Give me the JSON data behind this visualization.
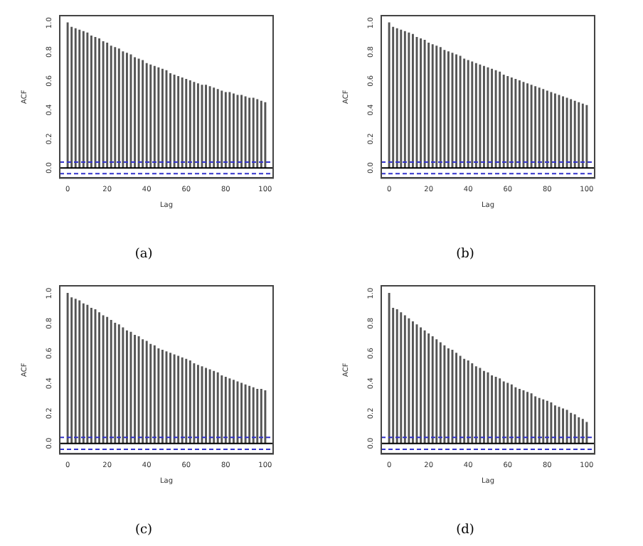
{
  "chart_data": [
    {
      "type": "bar",
      "title": "(a)",
      "xlabel": "Lag",
      "ylabel": "ACF",
      "x": [
        0,
        2,
        4,
        6,
        8,
        10,
        12,
        14,
        16,
        18,
        20,
        22,
        24,
        26,
        28,
        30,
        32,
        34,
        36,
        38,
        40,
        42,
        44,
        46,
        48,
        50,
        52,
        54,
        56,
        58,
        60,
        62,
        64,
        66,
        68,
        70,
        72,
        74,
        76,
        78,
        80,
        82,
        84,
        86,
        88,
        90,
        92,
        94,
        96,
        98,
        100
      ],
      "values": [
        1.0,
        0.97,
        0.96,
        0.95,
        0.94,
        0.93,
        0.91,
        0.9,
        0.89,
        0.87,
        0.86,
        0.84,
        0.83,
        0.82,
        0.8,
        0.79,
        0.78,
        0.76,
        0.75,
        0.74,
        0.72,
        0.71,
        0.7,
        0.69,
        0.68,
        0.67,
        0.65,
        0.64,
        0.63,
        0.62,
        0.61,
        0.6,
        0.59,
        0.58,
        0.57,
        0.57,
        0.56,
        0.55,
        0.54,
        0.53,
        0.52,
        0.52,
        0.51,
        0.5,
        0.5,
        0.49,
        0.48,
        0.48,
        0.47,
        0.46,
        0.45
      ],
      "color": "#555555",
      "xlim": [
        -4,
        104
      ],
      "ylim": [
        -0.07,
        1.05
      ],
      "xticks": [
        0,
        20,
        40,
        60,
        80,
        100
      ],
      "yticks": [
        {
          "value": 0,
          "label": "0.0"
        },
        {
          "value": 0.2,
          "label": "0.2"
        },
        {
          "value": 0.4,
          "label": "0.4"
        },
        {
          "value": 0.6,
          "label": "0.6"
        },
        {
          "value": 0.8,
          "label": "0.8"
        },
        {
          "value": 1,
          "label": "1.0"
        }
      ],
      "ref_lines": [
        {
          "axis": "y",
          "value": 0,
          "color": "#000000",
          "line_style": "solid"
        },
        {
          "axis": "y",
          "value": 0.04,
          "color": "#3333cc",
          "line_style": "dashed"
        },
        {
          "axis": "y",
          "value": -0.04,
          "color": "#3333cc",
          "line_style": "dashed"
        }
      ]
    },
    {
      "type": "bar",
      "title": "(b)",
      "xlabel": "Lag",
      "ylabel": "ACF",
      "x": [
        0,
        2,
        4,
        6,
        8,
        10,
        12,
        14,
        16,
        18,
        20,
        22,
        24,
        26,
        28,
        30,
        32,
        34,
        36,
        38,
        40,
        42,
        44,
        46,
        48,
        50,
        52,
        54,
        56,
        58,
        60,
        62,
        64,
        66,
        68,
        70,
        72,
        74,
        76,
        78,
        80,
        82,
        84,
        86,
        88,
        90,
        92,
        94,
        96,
        98,
        100
      ],
      "values": [
        1.0,
        0.97,
        0.96,
        0.95,
        0.94,
        0.93,
        0.92,
        0.9,
        0.89,
        0.88,
        0.86,
        0.85,
        0.84,
        0.83,
        0.81,
        0.8,
        0.79,
        0.78,
        0.77,
        0.75,
        0.74,
        0.73,
        0.72,
        0.71,
        0.7,
        0.69,
        0.68,
        0.67,
        0.66,
        0.64,
        0.63,
        0.62,
        0.61,
        0.6,
        0.59,
        0.58,
        0.57,
        0.56,
        0.55,
        0.54,
        0.53,
        0.52,
        0.51,
        0.5,
        0.49,
        0.48,
        0.47,
        0.46,
        0.45,
        0.44,
        0.43
      ],
      "color": "#555555",
      "xlim": [
        -4,
        104
      ],
      "ylim": [
        -0.07,
        1.05
      ],
      "xticks": [
        0,
        20,
        40,
        60,
        80,
        100
      ],
      "yticks": [
        {
          "value": 0,
          "label": "0.0"
        },
        {
          "value": 0.2,
          "label": "0.2"
        },
        {
          "value": 0.4,
          "label": "0.4"
        },
        {
          "value": 0.6,
          "label": "0.6"
        },
        {
          "value": 0.8,
          "label": "0.8"
        },
        {
          "value": 1,
          "label": "1.0"
        }
      ],
      "ref_lines": [
        {
          "axis": "y",
          "value": 0,
          "color": "#000000",
          "line_style": "solid"
        },
        {
          "axis": "y",
          "value": 0.04,
          "color": "#3333cc",
          "line_style": "dashed"
        },
        {
          "axis": "y",
          "value": -0.04,
          "color": "#3333cc",
          "line_style": "dashed"
        }
      ]
    },
    {
      "type": "bar",
      "title": "(c)",
      "xlabel": "Lag",
      "ylabel": "ACF",
      "x": [
        0,
        2,
        4,
        6,
        8,
        10,
        12,
        14,
        16,
        18,
        20,
        22,
        24,
        26,
        28,
        30,
        32,
        34,
        36,
        38,
        40,
        42,
        44,
        46,
        48,
        50,
        52,
        54,
        56,
        58,
        60,
        62,
        64,
        66,
        68,
        70,
        72,
        74,
        76,
        78,
        80,
        82,
        84,
        86,
        88,
        90,
        92,
        94,
        96,
        98,
        100
      ],
      "values": [
        1.0,
        0.97,
        0.96,
        0.95,
        0.93,
        0.92,
        0.9,
        0.89,
        0.87,
        0.85,
        0.84,
        0.82,
        0.8,
        0.79,
        0.77,
        0.75,
        0.74,
        0.72,
        0.71,
        0.69,
        0.68,
        0.66,
        0.65,
        0.63,
        0.62,
        0.61,
        0.6,
        0.59,
        0.58,
        0.57,
        0.56,
        0.55,
        0.53,
        0.52,
        0.51,
        0.5,
        0.49,
        0.48,
        0.47,
        0.45,
        0.44,
        0.43,
        0.42,
        0.41,
        0.4,
        0.39,
        0.38,
        0.37,
        0.36,
        0.36,
        0.35
      ],
      "color": "#555555",
      "xlim": [
        -4,
        104
      ],
      "ylim": [
        -0.07,
        1.05
      ],
      "xticks": [
        0,
        20,
        40,
        60,
        80,
        100
      ],
      "yticks": [
        {
          "value": 0,
          "label": "0.0"
        },
        {
          "value": 0.2,
          "label": "0.2"
        },
        {
          "value": 0.4,
          "label": "0.4"
        },
        {
          "value": 0.6,
          "label": "0.6"
        },
        {
          "value": 0.8,
          "label": "0.8"
        },
        {
          "value": 1,
          "label": "1.0"
        }
      ],
      "ref_lines": [
        {
          "axis": "y",
          "value": 0,
          "color": "#000000",
          "line_style": "solid"
        },
        {
          "axis": "y",
          "value": 0.04,
          "color": "#3333cc",
          "line_style": "dashed"
        },
        {
          "axis": "y",
          "value": -0.04,
          "color": "#3333cc",
          "line_style": "dashed"
        }
      ]
    },
    {
      "type": "bar",
      "title": "(d)",
      "xlabel": "Lag",
      "ylabel": "ACF",
      "x": [
        0,
        2,
        4,
        6,
        8,
        10,
        12,
        14,
        16,
        18,
        20,
        22,
        24,
        26,
        28,
        30,
        32,
        34,
        36,
        38,
        40,
        42,
        44,
        46,
        48,
        50,
        52,
        54,
        56,
        58,
        60,
        62,
        64,
        66,
        68,
        70,
        72,
        74,
        76,
        78,
        80,
        82,
        84,
        86,
        88,
        90,
        92,
        94,
        96,
        98,
        100
      ],
      "values": [
        1.0,
        0.9,
        0.89,
        0.87,
        0.85,
        0.83,
        0.81,
        0.79,
        0.77,
        0.75,
        0.73,
        0.71,
        0.69,
        0.67,
        0.65,
        0.63,
        0.62,
        0.6,
        0.58,
        0.56,
        0.55,
        0.53,
        0.51,
        0.5,
        0.48,
        0.47,
        0.45,
        0.44,
        0.43,
        0.41,
        0.4,
        0.39,
        0.37,
        0.36,
        0.35,
        0.34,
        0.33,
        0.31,
        0.3,
        0.29,
        0.28,
        0.27,
        0.25,
        0.24,
        0.23,
        0.22,
        0.2,
        0.19,
        0.17,
        0.16,
        0.14
      ],
      "color": "#555555",
      "xlim": [
        -4,
        104
      ],
      "ylim": [
        -0.07,
        1.05
      ],
      "xticks": [
        0,
        20,
        40,
        60,
        80,
        100
      ],
      "yticks": [
        {
          "value": 0,
          "label": "0.0"
        },
        {
          "value": 0.2,
          "label": "0.2"
        },
        {
          "value": 0.4,
          "label": "0.4"
        },
        {
          "value": 0.6,
          "label": "0.6"
        },
        {
          "value": 0.8,
          "label": "0.8"
        },
        {
          "value": 1,
          "label": "1.0"
        }
      ],
      "ref_lines": [
        {
          "axis": "y",
          "value": 0,
          "color": "#000000",
          "line_style": "solid"
        },
        {
          "axis": "y",
          "value": 0.04,
          "color": "#3333cc",
          "line_style": "dashed"
        },
        {
          "axis": "y",
          "value": -0.04,
          "color": "#3333cc",
          "line_style": "dashed"
        }
      ]
    }
  ]
}
